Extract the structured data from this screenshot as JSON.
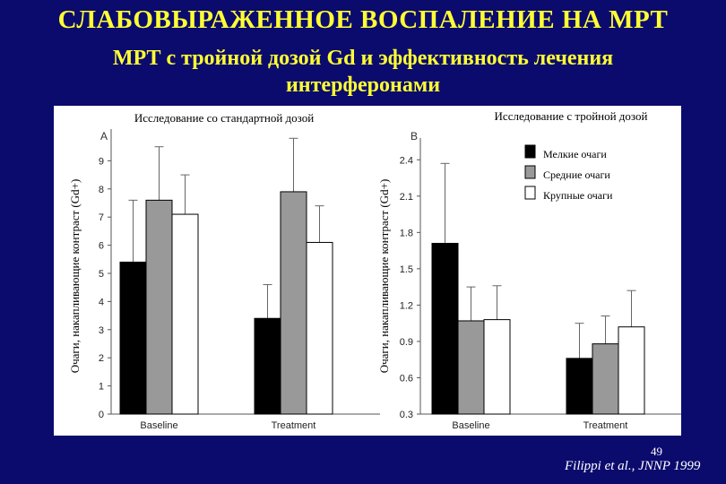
{
  "slide": {
    "title": "СЛАБОВЫРАЖЕННОЕ ВОСПАЛЕНИЕ НА МРТ",
    "subtitle_line1": "МРТ с тройной дозой Gd и эффективность лечения",
    "subtitle_line2": "интерферонами",
    "page_number": "49",
    "reference": "Filippi et al., JNNP 1999"
  },
  "chart_data": [
    {
      "type": "bar",
      "panel_label": "A",
      "title": "Исследование со стандартной дозой",
      "ylabel": "Очаги, накапливающие контраст (Gd+)",
      "xlabel": "",
      "categories": [
        "Baseline",
        "Treatment"
      ],
      "ylim": [
        0,
        10
      ],
      "yticks": [
        0,
        1,
        2,
        3,
        4,
        5,
        6,
        7,
        8,
        9
      ],
      "series": [
        {
          "name": "Мелкие очаги",
          "color": "#000000",
          "values": [
            5.4,
            3.4
          ],
          "err": [
            7.6,
            4.6
          ]
        },
        {
          "name": "Средние очаги",
          "color": "#999999",
          "values": [
            7.6,
            7.9
          ],
          "err": [
            9.5,
            9.8
          ]
        },
        {
          "name": "Крупные очаги",
          "color": "#ffffff",
          "values": [
            7.1,
            6.1
          ],
          "err": [
            8.5,
            7.4
          ]
        }
      ]
    },
    {
      "type": "bar",
      "panel_label": "B",
      "title": "Исследование с тройной дозой",
      "ylabel": "Очаги, накапливающие контраст (Gd+)",
      "xlabel": "",
      "categories": [
        "Baseline",
        "Treatment"
      ],
      "ylim": [
        0.3,
        2.55
      ],
      "yticks": [
        0.3,
        0.6,
        0.9,
        1.2,
        1.5,
        1.8,
        2.1,
        2.4
      ],
      "legend_position": "top-right",
      "series": [
        {
          "name": "Мелкие очаги",
          "color": "#000000",
          "values": [
            1.71,
            0.76
          ],
          "err": [
            2.37,
            1.05
          ]
        },
        {
          "name": "Средние очаги",
          "color": "#999999",
          "values": [
            1.07,
            0.88
          ],
          "err": [
            1.35,
            1.11
          ]
        },
        {
          "name": "Крупные очаги",
          "color": "#ffffff",
          "values": [
            1.08,
            1.02
          ],
          "err": [
            1.36,
            1.32
          ]
        }
      ]
    }
  ]
}
